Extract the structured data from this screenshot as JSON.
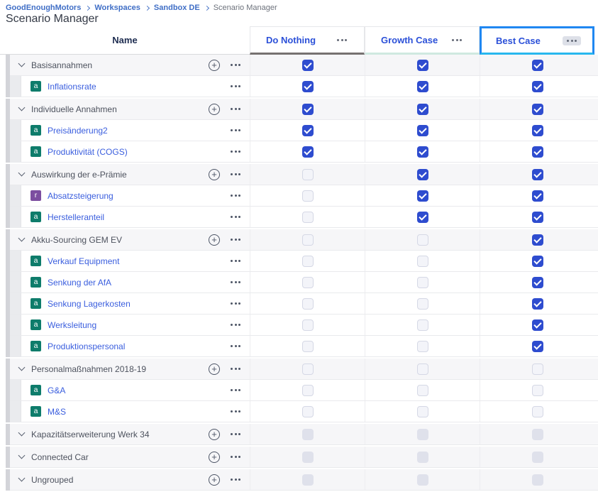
{
  "breadcrumb": {
    "items": [
      {
        "label": "GoodEnoughMotors"
      },
      {
        "label": "Workspaces"
      },
      {
        "label": "Sandbox DE"
      },
      {
        "label": "Scenario Manager"
      }
    ]
  },
  "page_title": "Scenario Manager",
  "table": {
    "name_header": "Name",
    "scenarios": [
      {
        "label": "Do Nothing",
        "accent": "#767170",
        "selected": false
      },
      {
        "label": "Growth Case",
        "accent": "#cfe9e0",
        "selected": false
      },
      {
        "label": "Best Case",
        "accent": "#28b7ee",
        "selected": true
      }
    ],
    "groups": [
      {
        "name": "Basisannahmen",
        "checks": [
          "checked",
          "checked",
          "checked"
        ],
        "children": [
          {
            "name": "Inflationsrate",
            "icon": "a",
            "icon_color": "#0e7c6b",
            "checks": [
              "checked",
              "checked",
              "checked"
            ]
          }
        ]
      },
      {
        "name": "Individuelle Annahmen",
        "checks": [
          "checked",
          "checked",
          "checked"
        ],
        "children": [
          {
            "name": "Preisänderung2",
            "icon": "a",
            "icon_color": "#0e7c6b",
            "checks": [
              "checked",
              "checked",
              "checked"
            ]
          },
          {
            "name": "Produktivität (COGS)",
            "icon": "a",
            "icon_color": "#0e7c6b",
            "checks": [
              "checked",
              "checked",
              "checked"
            ]
          }
        ]
      },
      {
        "name": "Auswirkung der e-Prämie",
        "checks": [
          "unchecked",
          "checked",
          "checked"
        ],
        "children": [
          {
            "name": "Absatzsteigerung",
            "icon": "r",
            "icon_color": "#7c4ea0",
            "checks": [
              "unchecked",
              "checked",
              "checked"
            ]
          },
          {
            "name": "Herstelleranteil",
            "icon": "a",
            "icon_color": "#0e7c6b",
            "checks": [
              "unchecked",
              "checked",
              "checked"
            ]
          }
        ]
      },
      {
        "name": "Akku-Sourcing GEM EV",
        "checks": [
          "unchecked",
          "unchecked",
          "checked"
        ],
        "children": [
          {
            "name": "Verkauf Equipment",
            "icon": "a",
            "icon_color": "#0e7c6b",
            "checks": [
              "unchecked",
              "unchecked",
              "checked"
            ]
          },
          {
            "name": "Senkung der AfA",
            "icon": "a",
            "icon_color": "#0e7c6b",
            "checks": [
              "unchecked",
              "unchecked",
              "checked"
            ]
          },
          {
            "name": "Senkung Lagerkosten",
            "icon": "a",
            "icon_color": "#0e7c6b",
            "checks": [
              "unchecked",
              "unchecked",
              "checked"
            ]
          },
          {
            "name": "Werksleitung",
            "icon": "a",
            "icon_color": "#0e7c6b",
            "checks": [
              "unchecked",
              "unchecked",
              "checked"
            ]
          },
          {
            "name": "Produktionspersonal",
            "icon": "a",
            "icon_color": "#0e7c6b",
            "checks": [
              "unchecked",
              "unchecked",
              "checked"
            ]
          }
        ]
      },
      {
        "name": "Personalmaßnahmen 2018-19",
        "checks": [
          "unchecked",
          "unchecked",
          "unchecked"
        ],
        "children": [
          {
            "name": "G&A",
            "icon": "a",
            "icon_color": "#0e7c6b",
            "checks": [
              "unchecked",
              "unchecked",
              "unchecked"
            ]
          },
          {
            "name": "M&S",
            "icon": "a",
            "icon_color": "#0e7c6b",
            "checks": [
              "unchecked",
              "unchecked",
              "unchecked"
            ]
          }
        ]
      },
      {
        "name": "Kapazitätserweiterung Werk 34",
        "checks": [
          "disabled",
          "disabled",
          "disabled"
        ],
        "children": []
      },
      {
        "name": "Connected Car",
        "checks": [
          "disabled",
          "disabled",
          "disabled"
        ],
        "children": []
      },
      {
        "name": "Ungrouped",
        "checks": [
          "disabled",
          "disabled",
          "disabled"
        ],
        "children": []
      }
    ]
  },
  "colors": {
    "checked_checkbox": "#2e4ccf",
    "selected_column_border": "#1f87f1",
    "selected_column_underline": "#28b7ee",
    "link_blue": "#3a5ede",
    "breadcrumb_blue": "#3f6ec6"
  }
}
